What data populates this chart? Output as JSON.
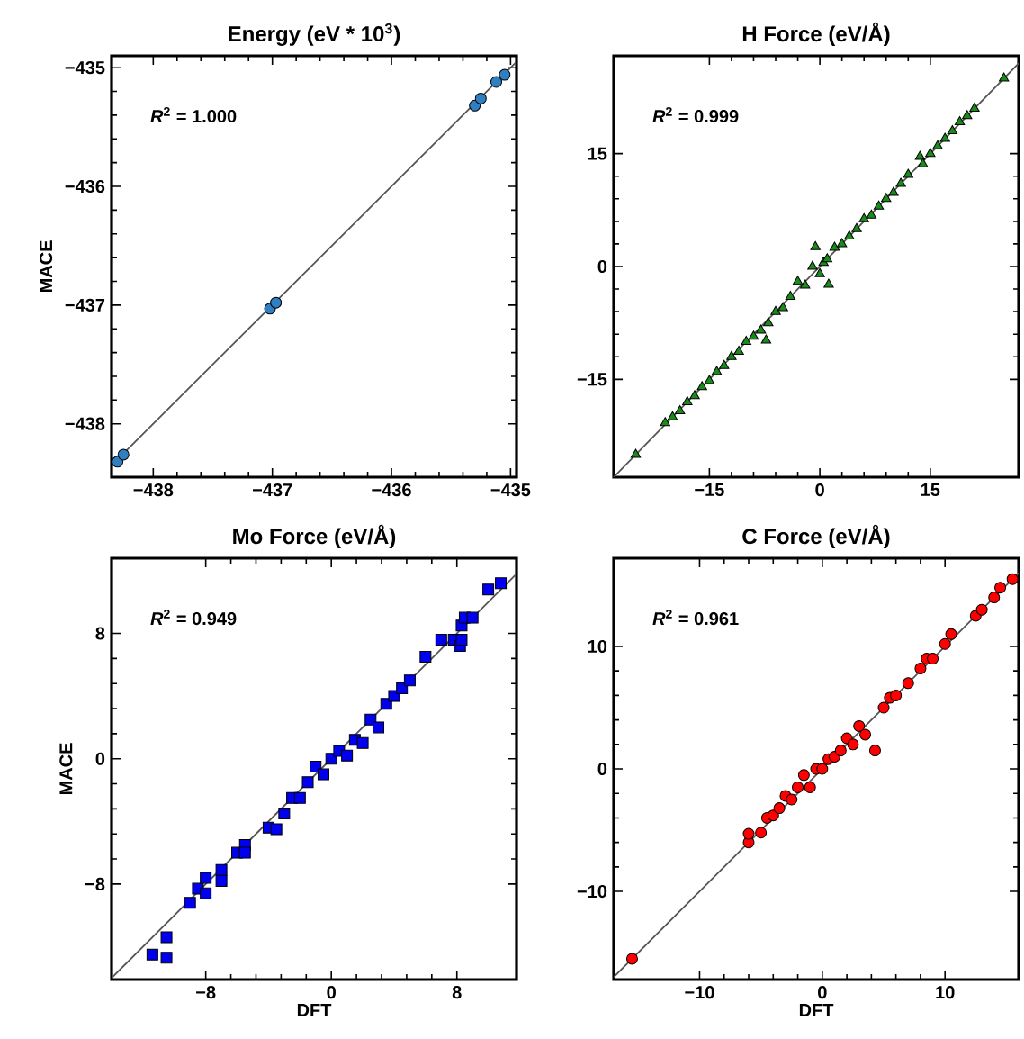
{
  "chart_data": [
    {
      "type": "scatter",
      "title": "Energy (eV * 10$^{3}$)",
      "ylabel": "MACE",
      "annotations": [
        "*R*$^{2}$ = 1.000"
      ],
      "marker": "circle",
      "grid": false,
      "xlim": [
        -438.35,
        -434.95
      ],
      "ylim": [
        -438.45,
        -434.9
      ],
      "xticks": [
        {
          "value": -438,
          "label": "−438"
        },
        {
          "value": -437,
          "label": "−437"
        },
        {
          "value": -436,
          "label": "−436"
        },
        {
          "value": -435,
          "label": "−435"
        }
      ],
      "yticks": [
        {
          "value": -438,
          "label": "−438"
        },
        {
          "value": -437,
          "label": "−437"
        },
        {
          "value": -436,
          "label": "−436"
        },
        {
          "value": -435,
          "label": "−435"
        }
      ],
      "series": [
        {
          "type": "line",
          "marker": "none",
          "color": "#555555",
          "x": [
            -438.35,
            -434.95
          ],
          "values": [
            -438.35,
            -434.95
          ]
        },
        {
          "color": "#2f7fc1",
          "x": [
            -438.3,
            -438.25,
            -437.02,
            -436.97,
            -435.3,
            -435.25,
            -435.12,
            -435.05
          ],
          "values": [
            -438.32,
            -438.26,
            -437.03,
            -436.98,
            -435.32,
            -435.26,
            -435.12,
            -435.06
          ]
        }
      ]
    },
    {
      "type": "scatter",
      "title": "H Force (eV/Å)",
      "annotations": [
        "*R*$^{2}$ = 0.999"
      ],
      "marker": "triangle",
      "grid": false,
      "xlim": [
        -28,
        27
      ],
      "ylim": [
        -28,
        28
      ],
      "xticks": [
        {
          "value": -15,
          "label": "−15"
        },
        0,
        15
      ],
      "yticks": [
        {
          "value": -15,
          "label": "−15"
        },
        0,
        15
      ],
      "series": [
        {
          "type": "line",
          "marker": "none",
          "color": "#555555",
          "x": [
            -28,
            27
          ],
          "values": [
            -28,
            27
          ]
        },
        {
          "color": "#1a8a1a",
          "x": [
            -25,
            -21,
            -20,
            -19,
            -18,
            -17,
            -16,
            -15,
            -14,
            -13,
            -12,
            -11,
            -10,
            -9,
            -8,
            -7,
            -7.3,
            -6,
            -5,
            -4,
            -3,
            -2,
            -1,
            -0.6,
            0,
            0.5,
            1.2,
            1,
            2,
            3,
            4,
            5,
            6,
            7,
            8,
            9,
            10,
            11,
            12,
            13.6,
            14,
            15,
            16,
            17,
            18,
            19,
            20,
            21,
            25
          ],
          "values": [
            -25,
            -20.8,
            -20,
            -19.2,
            -18,
            -17.2,
            -16,
            -15.2,
            -14,
            -13.2,
            -12,
            -11.3,
            -10,
            -9.3,
            -8.5,
            -7.5,
            -9.8,
            -6,
            -5.5,
            -4,
            -2,
            -2.5,
            0,
            2.6,
            -1,
            0.5,
            -2.4,
            1,
            2.5,
            3,
            4,
            5,
            6.3,
            6.8,
            8,
            9,
            9.8,
            11,
            12.2,
            14.6,
            13.6,
            15,
            16,
            17,
            18,
            19.2,
            20,
            21,
            25
          ]
        }
      ]
    },
    {
      "type": "scatter",
      "title": "Mo Force (eV/Å)",
      "xlabel": "DFT",
      "ylabel": "MACE",
      "annotations": [
        "*R*$^{2}$ = 0.949"
      ],
      "marker": "square",
      "grid": false,
      "xlim": [
        -14,
        11.8
      ],
      "ylim": [
        -14.1,
        12.8
      ],
      "xticks": [
        {
          "value": -8,
          "label": "−8"
        },
        0,
        8
      ],
      "yticks": [
        {
          "value": -8,
          "label": "−8"
        },
        0,
        8
      ],
      "series": [
        {
          "type": "line",
          "marker": "none",
          "color": "#555555",
          "x": [
            -14,
            11.8
          ],
          "values": [
            -14,
            11.8
          ]
        },
        {
          "color": "#0000ee",
          "x": [
            -11.4,
            -10.5,
            -10.5,
            -9,
            -8.5,
            -8,
            -8,
            -7,
            -7,
            -6,
            -5.5,
            -5.5,
            -4,
            -3.5,
            -3,
            -2.5,
            -2,
            -1.5,
            -1,
            -0.5,
            0,
            0.5,
            1,
            1.5,
            2,
            2.5,
            3,
            3.5,
            4,
            4.5,
            5,
            6,
            7,
            7.8,
            8.2,
            8.3,
            8.3,
            8.5,
            9,
            10,
            10.8
          ],
          "values": [
            -12.5,
            -12.7,
            -11.4,
            -9.2,
            -8.3,
            -7.6,
            -8.6,
            -7.1,
            -7.8,
            -6,
            -5.5,
            -6,
            -4.4,
            -4.5,
            -3.5,
            -2.5,
            -2.5,
            -1.5,
            -0.5,
            -1,
            0,
            0.5,
            0.2,
            1.2,
            1,
            2.5,
            2,
            3.5,
            4,
            4.5,
            5,
            6.5,
            7.6,
            7.6,
            7.2,
            7.6,
            8.5,
            9,
            9,
            10.8,
            11.2
          ]
        }
      ]
    },
    {
      "type": "scatter",
      "title": "C Force (eV/Å)",
      "xlabel": "DFT",
      "annotations": [
        "*R*$^{2}$ = 0.961"
      ],
      "marker": "circle",
      "grid": false,
      "xlim": [
        -17,
        16
      ],
      "ylim": [
        -17.2,
        17.2
      ],
      "xticks": [
        {
          "value": -10,
          "label": "−10"
        },
        0,
        10
      ],
      "yticks": [
        {
          "value": -10,
          "label": "−10"
        },
        0,
        10
      ],
      "series": [
        {
          "type": "line",
          "marker": "none",
          "color": "#555555",
          "x": [
            -17,
            16
          ],
          "values": [
            -17,
            16
          ]
        },
        {
          "color": "#ff0000",
          "x": [
            -15.5,
            -6,
            -6,
            -5,
            -4.5,
            -4,
            -3.5,
            -3,
            -2.5,
            -2,
            -1.5,
            -1,
            -0.5,
            0,
            0.5,
            1,
            1.5,
            2,
            2.5,
            3,
            3.5,
            4.3,
            5,
            5.5,
            6,
            7,
            8,
            8.5,
            9,
            10,
            10.5,
            12.5,
            13,
            14,
            14.5,
            15.5
          ],
          "values": [
            -15.5,
            -6,
            -5.3,
            -5.2,
            -4,
            -3.8,
            -3.2,
            -2.2,
            -2.5,
            -1.5,
            -0.5,
            -1.5,
            0,
            0,
            0.8,
            1,
            1.5,
            2.5,
            2,
            3.5,
            2.8,
            1.5,
            5,
            5.8,
            6,
            7,
            8.2,
            9,
            9,
            10.2,
            11,
            12.5,
            13,
            14,
            14.8,
            15.5
          ]
        }
      ]
    }
  ]
}
